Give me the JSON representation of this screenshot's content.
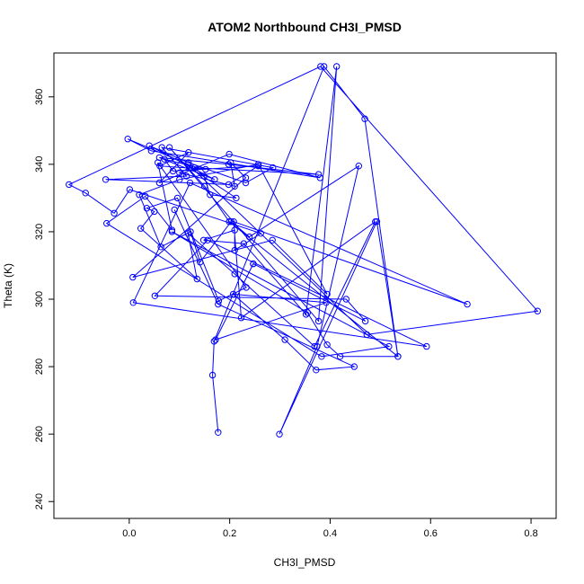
{
  "chart_data": {
    "type": "line",
    "title": "ATOM2 Northbound CH3I_PMSD",
    "xlabel": "CH3I_PMSD",
    "ylabel": "Theta (K)",
    "xlim": [
      -0.15,
      0.85
    ],
    "ylim": [
      235,
      373
    ],
    "xticks": [
      0.0,
      0.2,
      0.4,
      0.6,
      0.8
    ],
    "yticks": [
      240,
      260,
      280,
      300,
      320,
      340,
      360
    ],
    "grid": false,
    "markers": "open-circle",
    "color": "#0000ff",
    "series": [
      {
        "x": [
          0.177,
          0.166,
          0.169,
          0.388,
          0.469,
          0.535,
          0.493,
          0.299,
          0.374,
          0.457,
          0.239,
          0.203,
          0.141,
          0.122,
          0.063,
          0.02,
          0.1,
          0.257,
          0.394,
          0.285,
          0.007,
          0.232,
          0.202,
          0.21,
          0.1,
          0.121,
          0.213,
          0.161,
          0.149,
          0.13,
          0.377,
          0.198,
          0.06,
          0.17,
          0.04,
          0.118,
          0.232,
          0.286,
          0.065,
          0.114,
          -0.047,
          0.198,
          0.257,
          0.087,
          0.07,
          0.152,
          0.061,
          0.118,
          0.06,
          0.199,
          0.38,
          0.044,
          -0.003,
          0.117,
          0.473,
          0.813,
          0.381,
          -0.12,
          -0.087,
          -0.03,
          0.001,
          0.262,
          0.21,
          0.21,
          0.148,
          0.228,
          0.352,
          0.413,
          0.377,
          0.08,
          0.15,
          0.199,
          0.535,
          0.42,
          0.394,
          0.355,
          0.085,
          0.517,
          0.383,
          -0.045,
          0.032,
          0.085,
          0.057,
          0.233,
          0.178,
          0.096,
          0.035,
          0.05,
          0.023,
          0.135,
          0.117,
          0.21,
          0.369,
          0.49,
          0.223,
          0.208,
          0.673,
          0.121,
          0.008,
          0.592,
          0.156,
          0.051,
          0.432,
          0.47,
          0.247,
          0.247,
          0.172,
          0.392,
          0.207,
          0.31,
          0.372,
          0.448,
          0.177,
          0.09
        ],
        "y": [
          260.5,
          277.5,
          287.5,
          369.0,
          353.5,
          283.0,
          323.0,
          260.0,
          286.0,
          339.5,
          318.5,
          323.0,
          311.0,
          320.0,
          315.5,
          331.0,
          335.5,
          340.0,
          301.5,
          317.5,
          306.5,
          336.0,
          340.5,
          333.5,
          337.5,
          339.0,
          330.0,
          331.0,
          336.5,
          339.0,
          337.0,
          340.0,
          342.0,
          335.5,
          345.5,
          340.5,
          334.5,
          339.0,
          345.0,
          336.5,
          335.5,
          334.0,
          339.5,
          338.0,
          341.5,
          338.5,
          339.5,
          343.5,
          334.5,
          343.0,
          336.0,
          344.0,
          347.5,
          340.0,
          289.5,
          296.5,
          369.0,
          334.0,
          331.5,
          325.5,
          332.5,
          319.5,
          314.5,
          320.5,
          317.5,
          316.5,
          295.5,
          369.0,
          293.5,
          345.0,
          333.5,
          323.0,
          283.0,
          283.0,
          286.5,
          296.0,
          320.0,
          286.0,
          283.0,
          322.5,
          330.5,
          320.5,
          340.5,
          303.5,
          299.5,
          330.0,
          327.0,
          326.0,
          321.0,
          306.0,
          319.5,
          307.5,
          286.0,
          323.0,
          294.5,
          323.0,
          298.5,
          334.5,
          299.0,
          286.0,
          317.5,
          301.0,
          300.0,
          293.5,
          310.5,
          310.5,
          288.0,
          299.0,
          301.5,
          288.0,
          279.0,
          280.0,
          298.5,
          326.5
        ]
      }
    ]
  }
}
